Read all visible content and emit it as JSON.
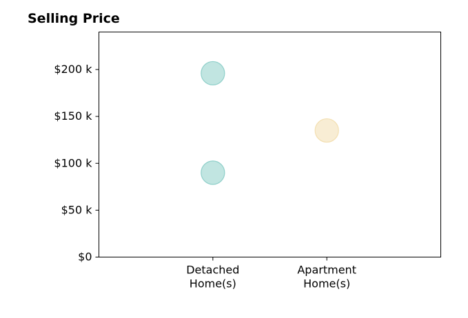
{
  "chart_data": {
    "type": "scatter",
    "title": "Selling Price",
    "categories": [
      "Detached\nHome(s)",
      "Apartment\nHome(s)"
    ],
    "xlabel": "",
    "ylabel": "",
    "ylim": [
      0,
      240000
    ],
    "yticks": [
      {
        "value": 0,
        "label": "$0"
      },
      {
        "value": 50000,
        "label": "$50 k"
      },
      {
        "value": 100000,
        "label": "$100 k"
      },
      {
        "value": 150000,
        "label": "$150 k"
      },
      {
        "value": 200000,
        "label": "$200 k"
      }
    ],
    "points": [
      {
        "category": "Detached\nHome(s)",
        "value": 196000,
        "color": "#8ecfc9"
      },
      {
        "category": "Detached\nHome(s)",
        "value": 90000,
        "color": "#8ecfc9"
      },
      {
        "category": "Apartment\nHome(s)",
        "value": 135000,
        "color": "#f3dfb0"
      }
    ],
    "grid": false,
    "legend": "none"
  }
}
